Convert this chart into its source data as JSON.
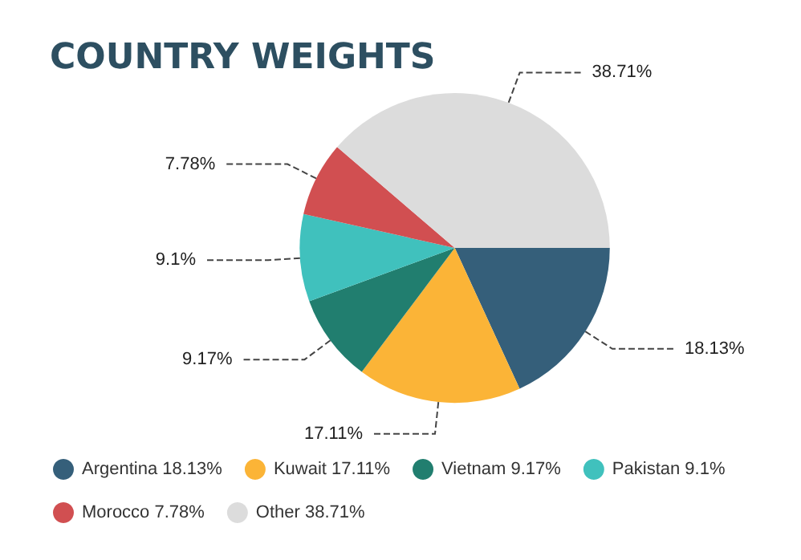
{
  "chart_data": {
    "type": "pie",
    "title": "COUNTRY WEIGHTS",
    "categories": [
      "Argentina",
      "Kuwait",
      "Vietnam",
      "Pakistan",
      "Morocco",
      "Other"
    ],
    "values": [
      18.13,
      17.11,
      9.17,
      9.1,
      7.78,
      38.71
    ],
    "value_labels": [
      "18.13%",
      "17.11%",
      "9.17%",
      "9.1%",
      "7.78%",
      "38.71%"
    ],
    "colors": [
      "#355f7a",
      "#fbb437",
      "#217e6f",
      "#40c1bd",
      "#d14f51",
      "#dcdcdc"
    ],
    "legend": "bottom"
  }
}
